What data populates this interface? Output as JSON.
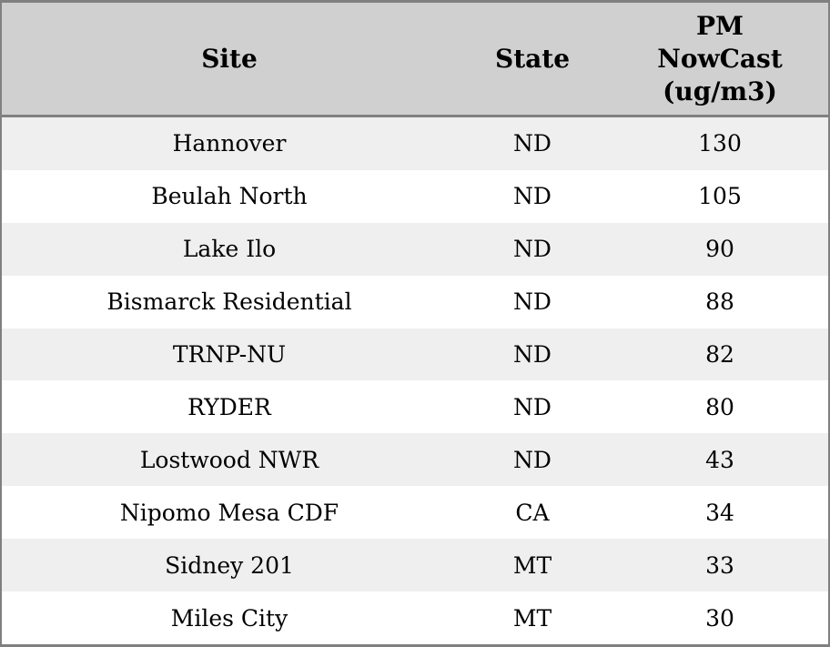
{
  "chart_data": {
    "type": "table",
    "title": "",
    "columns": [
      "Site",
      "State",
      "PM NowCast (ug/m3)"
    ],
    "header": {
      "site": "Site",
      "state": "State",
      "pm_lines": [
        "PM",
        "NowCast",
        "(ug/m3)"
      ]
    },
    "rows": [
      {
        "site": "Hannover",
        "state": "ND",
        "value": "130"
      },
      {
        "site": "Beulah North",
        "state": "ND",
        "value": "105"
      },
      {
        "site": "Lake Ilo",
        "state": "ND",
        "value": "90"
      },
      {
        "site": "Bismarck Residential",
        "state": "ND",
        "value": "88"
      },
      {
        "site": "TRNP-NU",
        "state": "ND",
        "value": "82"
      },
      {
        "site": "RYDER",
        "state": "ND",
        "value": "80"
      },
      {
        "site": "Lostwood NWR",
        "state": "ND",
        "value": "43"
      },
      {
        "site": "Nipomo Mesa CDF",
        "state": "CA",
        "value": "34"
      },
      {
        "site": "Sidney 201",
        "state": "MT",
        "value": "33"
      },
      {
        "site": "Miles City",
        "state": "MT",
        "value": "30"
      }
    ],
    "layout": {
      "striped": true,
      "stripe_pattern": "odd-rows-shaded",
      "gridlines": "outer-border-and-header-divider-only",
      "text_align": "center"
    }
  },
  "colors": {
    "border": "#808080",
    "header-bg": "#d0d0d0",
    "stripe": "#efefef",
    "row-bg": "#ffffff",
    "text": "#000000"
  }
}
